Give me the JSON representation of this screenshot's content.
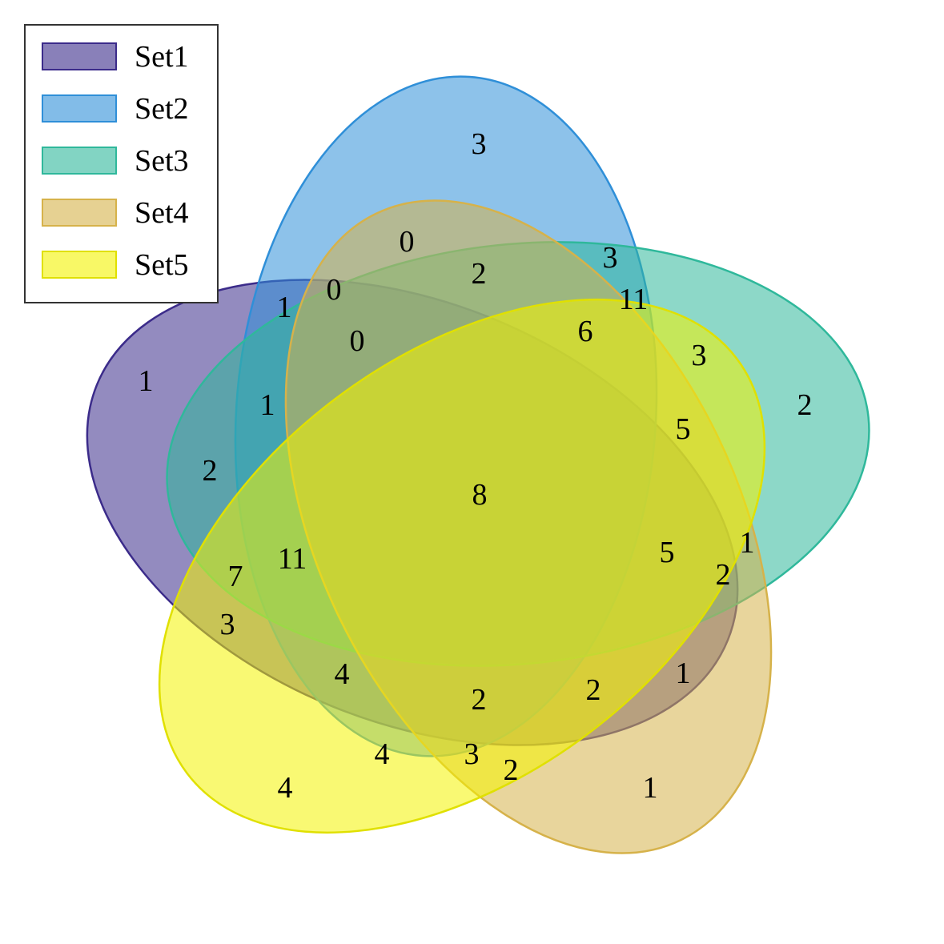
{
  "chart_data": {
    "type": "venn",
    "sets": [
      {
        "name": "Set1",
        "fill": "#3b2b8a",
        "stroke": "#3b2b8a"
      },
      {
        "name": "Set2",
        "fill": "#2f8fd8",
        "stroke": "#2f8fd8"
      },
      {
        "name": "Set3",
        "fill": "#2fb89b",
        "stroke": "#2fb89b"
      },
      {
        "name": "Set4",
        "fill": "#d6b24a",
        "stroke": "#d6b24a"
      },
      {
        "name": "Set5",
        "fill": "#f4f400",
        "stroke": "#e0e000"
      }
    ],
    "legend_position": "top-left",
    "regions": [
      {
        "sets": [
          "Set1"
        ],
        "value": 1
      },
      {
        "sets": [
          "Set2"
        ],
        "value": 3
      },
      {
        "sets": [
          "Set3"
        ],
        "value": 2
      },
      {
        "sets": [
          "Set4"
        ],
        "value": 1
      },
      {
        "sets": [
          "Set5"
        ],
        "value": 4
      },
      {
        "sets": [
          "Set1",
          "Set2"
        ],
        "value": 1
      },
      {
        "sets": [
          "Set1",
          "Set3"
        ],
        "value": 2
      },
      {
        "sets": [
          "Set1",
          "Set4"
        ],
        "value": 0
      },
      {
        "sets": [
          "Set1",
          "Set5"
        ],
        "value": 3
      },
      {
        "sets": [
          "Set2",
          "Set3"
        ],
        "value": 3
      },
      {
        "sets": [
          "Set2",
          "Set4"
        ],
        "value": 0
      },
      {
        "sets": [
          "Set2",
          "Set5"
        ],
        "value": 2
      },
      {
        "sets": [
          "Set3",
          "Set4"
        ],
        "value": 1
      },
      {
        "sets": [
          "Set3",
          "Set5"
        ],
        "value": 3
      },
      {
        "sets": [
          "Set4",
          "Set5"
        ],
        "value": 1
      },
      {
        "sets": [
          "Set1",
          "Set2",
          "Set3"
        ],
        "value": 1
      },
      {
        "sets": [
          "Set1",
          "Set2",
          "Set4"
        ],
        "value": 0
      },
      {
        "sets": [
          "Set1",
          "Set2",
          "Set5"
        ],
        "value": 3
      },
      {
        "sets": [
          "Set1",
          "Set3",
          "Set4"
        ],
        "value": 2
      },
      {
        "sets": [
          "Set1",
          "Set3",
          "Set5"
        ],
        "value": 7
      },
      {
        "sets": [
          "Set1",
          "Set4",
          "Set5"
        ],
        "value": 2
      },
      {
        "sets": [
          "Set2",
          "Set3",
          "Set4"
        ],
        "value": 2
      },
      {
        "sets": [
          "Set2",
          "Set3",
          "Set5"
        ],
        "value": 11
      },
      {
        "sets": [
          "Set2",
          "Set4",
          "Set5"
        ],
        "value": 4
      },
      {
        "sets": [
          "Set3",
          "Set4",
          "Set5"
        ],
        "value": 5
      },
      {
        "sets": [
          "Set1",
          "Set2",
          "Set3",
          "Set4"
        ],
        "value": 2
      },
      {
        "sets": [
          "Set1",
          "Set2",
          "Set3",
          "Set5"
        ],
        "value": 11
      },
      {
        "sets": [
          "Set1",
          "Set2",
          "Set4",
          "Set5"
        ],
        "value": 4
      },
      {
        "sets": [
          "Set1",
          "Set3",
          "Set4",
          "Set5"
        ],
        "value": 5
      },
      {
        "sets": [
          "Set2",
          "Set3",
          "Set4",
          "Set5"
        ],
        "value": 6
      },
      {
        "sets": [
          "Set1",
          "Set2",
          "Set3",
          "Set4",
          "Set5"
        ],
        "value": 8
      }
    ]
  }
}
